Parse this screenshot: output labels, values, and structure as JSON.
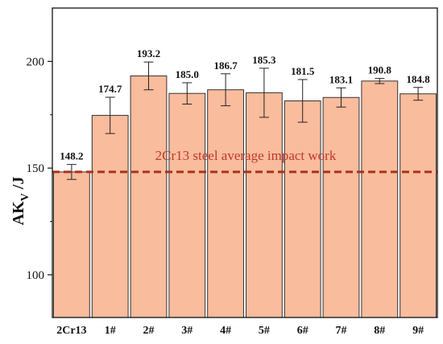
{
  "chart_data": {
    "type": "bar",
    "categories": [
      "2Cr13",
      "1#",
      "2#",
      "3#",
      "4#",
      "5#",
      "6#",
      "7#",
      "8#",
      "9#"
    ],
    "values": [
      148.2,
      174.7,
      193.2,
      185.0,
      186.7,
      185.3,
      181.5,
      183.1,
      190.8,
      184.8
    ],
    "value_labels": [
      "148.2",
      "174.7",
      "193.2",
      "185.0",
      "186.7",
      "185.3",
      "181.5",
      "183.1",
      "190.8",
      "184.8"
    ],
    "errors": [
      3.5,
      8.5,
      6.5,
      5.0,
      7.5,
      11.5,
      10.0,
      4.5,
      1.2,
      3.0
    ],
    "ylabel": "AK",
    "ylabel_sub": "V",
    "ylabel_unit": " /J",
    "ylim": [
      80,
      225
    ],
    "yticks": [
      100,
      150,
      200
    ],
    "reference_line": {
      "value": 148.2,
      "label": "2Cr13 steel average impact work",
      "color": "#c0392b"
    },
    "colors": {
      "bar_fill": "#f9bc9c",
      "bar_stroke": "#333333"
    },
    "grid": false
  }
}
